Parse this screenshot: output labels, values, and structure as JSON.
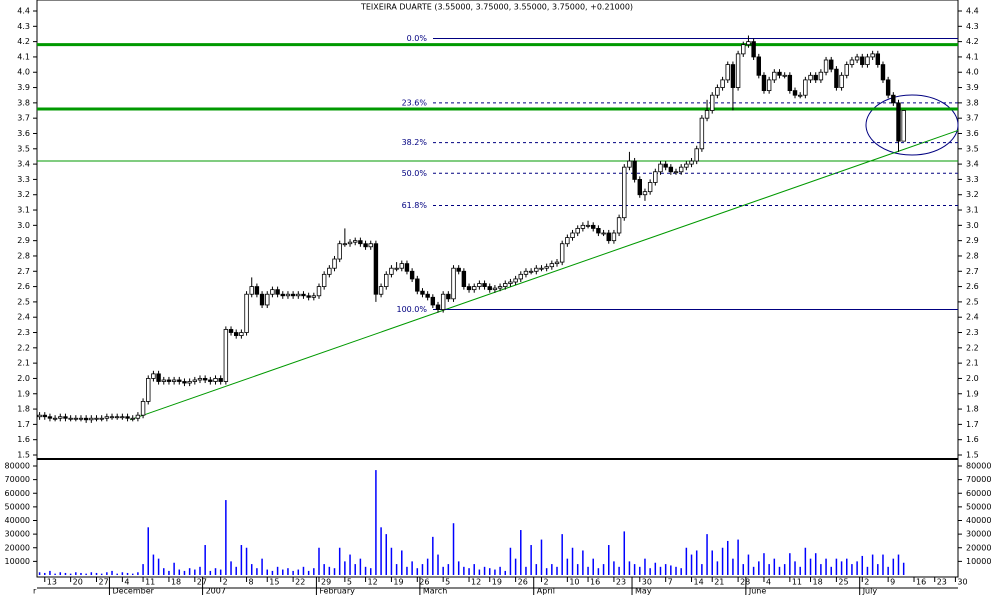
{
  "chart_data": {
    "type": "candlestick",
    "title": "TEIXEIRA DUARTE (3.55000, 3.75000, 3.55000, 3.75000, +0.21000)",
    "categories": [
      null,
      "13",
      null,
      null,
      null,
      null,
      "20",
      null,
      null,
      null,
      null,
      "27",
      null,
      null,
      null,
      null,
      "4",
      null,
      null,
      null,
      "11",
      null,
      null,
      null,
      null,
      "18",
      null,
      null,
      null,
      null,
      "27",
      null,
      null,
      null,
      null,
      "2",
      null,
      null,
      null,
      null,
      "8",
      null,
      null,
      null,
      "15",
      null,
      null,
      null,
      null,
      "22",
      null,
      null,
      null,
      null,
      "29",
      null,
      null,
      null,
      null,
      "5",
      null,
      null,
      null,
      "12",
      null,
      null,
      null,
      null,
      "19",
      null,
      null,
      null,
      null,
      "26",
      null,
      null,
      null,
      null,
      "5",
      null,
      null,
      null,
      null,
      "12",
      null,
      null,
      null,
      "19",
      null,
      null,
      null,
      null,
      "26",
      null,
      null,
      null,
      null,
      "2",
      null,
      null,
      null,
      null,
      "10",
      null,
      null,
      null,
      "16",
      null,
      null,
      null,
      null,
      "23",
      null,
      null,
      null,
      null,
      "30",
      null,
      null,
      null,
      null,
      "7",
      null,
      null,
      null,
      null,
      "14",
      null,
      null,
      null,
      "21",
      null,
      null,
      null,
      null,
      "28",
      null,
      null,
      null,
      null,
      "4",
      null,
      null,
      null,
      null,
      "11",
      null,
      null,
      null,
      "18",
      null,
      null,
      null,
      null,
      "25",
      null,
      null,
      null,
      null,
      "2",
      null,
      null,
      null,
      null,
      "9",
      null,
      null,
      null,
      null,
      "16",
      null,
      null,
      null,
      "23",
      null,
      null,
      null,
      "30"
    ],
    "months": [
      "r",
      null,
      null,
      null,
      null,
      null,
      null,
      null,
      null,
      null,
      null,
      null,
      null,
      null,
      "December",
      null,
      null,
      null,
      null,
      null,
      null,
      null,
      null,
      null,
      null,
      null,
      null,
      null,
      null,
      null,
      null,
      null,
      "2007",
      null,
      null,
      null,
      null,
      null,
      null,
      null,
      null,
      null,
      null,
      null,
      null,
      null,
      null,
      null,
      null,
      null,
      null,
      null,
      null,
      null,
      "February",
      null,
      null,
      null,
      null,
      null,
      null,
      null,
      null,
      null,
      null,
      null,
      null,
      null,
      null,
      null,
      null,
      null,
      null,
      null,
      "March",
      null,
      null,
      null,
      null,
      null,
      null,
      null,
      null,
      null,
      null,
      null,
      null,
      null,
      null,
      null,
      null,
      null,
      null,
      null,
      null,
      null,
      "April",
      null,
      null,
      null,
      null,
      null,
      null,
      null,
      null,
      null,
      null,
      null,
      null,
      null,
      null,
      null,
      null,
      null,
      null,
      "May",
      null,
      null,
      null,
      null,
      null,
      null,
      null,
      null,
      null,
      null,
      null,
      null,
      null,
      null,
      null,
      null,
      null,
      null,
      null,
      null,
      null,
      "June",
      null,
      null,
      null,
      null,
      null,
      null,
      null,
      null,
      null,
      null,
      null,
      null,
      null,
      null,
      null,
      null,
      null,
      null,
      null,
      null,
      null,
      "July",
      null,
      null,
      null,
      null,
      null,
      null,
      null,
      null,
      null,
      null,
      null,
      null,
      null,
      null,
      null,
      null,
      null,
      null
    ],
    "open": [
      1.75,
      1.76,
      1.75,
      1.74,
      1.74,
      1.75,
      1.74,
      1.74,
      1.74,
      1.74,
      1.73,
      1.74,
      1.74,
      1.74,
      1.75,
      1.75,
      1.75,
      1.75,
      1.74,
      1.74,
      1.76,
      1.85,
      2.0,
      2.03,
      1.98,
      1.99,
      1.98,
      1.99,
      1.98,
      1.97,
      1.98,
      1.99,
      2.0,
      1.99,
      1.98,
      2.0,
      1.98,
      2.32,
      2.3,
      2.28,
      2.3,
      2.55,
      2.6,
      2.55,
      2.48,
      2.55,
      2.58,
      2.55,
      2.54,
      2.55,
      2.54,
      2.55,
      2.54,
      2.53,
      2.54,
      2.6,
      2.68,
      2.72,
      2.78,
      2.88,
      2.88,
      2.89,
      2.9,
      2.88,
      2.86,
      2.88,
      2.55,
      2.6,
      2.68,
      2.72,
      2.72,
      2.75,
      2.7,
      2.65,
      2.57,
      2.55,
      2.53,
      2.48,
      2.45,
      2.55,
      2.52,
      2.72,
      2.7,
      2.6,
      2.58,
      2.6,
      2.62,
      2.6,
      2.58,
      2.59,
      2.6,
      2.62,
      2.63,
      2.65,
      2.68,
      2.7,
      2.7,
      2.72,
      2.72,
      2.73,
      2.75,
      2.76,
      2.88,
      2.92,
      2.95,
      2.98,
      3.0,
      3.0,
      2.98,
      2.95,
      2.95,
      2.9,
      2.95,
      3.05,
      3.38,
      3.42,
      3.3,
      3.2,
      3.22,
      3.28,
      3.35,
      3.4,
      3.38,
      3.35,
      3.35,
      3.38,
      3.4,
      3.42,
      3.5,
      3.7,
      3.75,
      3.85,
      3.9,
      3.95,
      4.05,
      3.9,
      4.12,
      4.18,
      4.2,
      4.1,
      3.98,
      3.88,
      3.95,
      4.0,
      3.98,
      3.98,
      3.88,
      3.85,
      3.85,
      3.95,
      3.98,
      3.95,
      4.0,
      4.08,
      4.02,
      3.9,
      3.98,
      4.05,
      4.08,
      4.1,
      4.05,
      4.1,
      4.12,
      4.05,
      3.95,
      3.85,
      3.8,
      3.55,
      null,
      null,
      null,
      null,
      null,
      null,
      null,
      null,
      null,
      null
    ],
    "high": [
      1.78,
      1.78,
      1.77,
      1.76,
      1.77,
      1.77,
      1.76,
      1.76,
      1.76,
      1.76,
      1.76,
      1.76,
      1.76,
      1.77,
      1.77,
      1.77,
      1.77,
      1.77,
      1.76,
      1.78,
      1.87,
      2.02,
      2.05,
      2.05,
      2.01,
      2.01,
      2.01,
      2.01,
      2.0,
      2.0,
      2.01,
      2.02,
      2.02,
      2.01,
      2.02,
      2.02,
      2.34,
      2.34,
      2.32,
      2.32,
      2.57,
      2.66,
      2.62,
      2.57,
      2.57,
      2.6,
      2.6,
      2.57,
      2.57,
      2.57,
      2.57,
      2.57,
      2.56,
      2.56,
      2.62,
      2.7,
      2.74,
      2.8,
      2.9,
      2.98,
      2.91,
      2.92,
      2.92,
      2.9,
      2.9,
      2.9,
      2.62,
      2.7,
      2.74,
      2.76,
      2.77,
      2.77,
      2.72,
      2.67,
      2.59,
      2.57,
      2.55,
      2.5,
      2.57,
      2.57,
      2.74,
      2.74,
      2.72,
      2.62,
      2.62,
      2.64,
      2.64,
      2.62,
      2.61,
      2.62,
      2.64,
      2.65,
      2.67,
      2.7,
      2.72,
      2.72,
      2.74,
      2.74,
      2.75,
      2.77,
      2.78,
      2.9,
      2.94,
      2.97,
      3.0,
      3.02,
      3.03,
      3.02,
      3.0,
      2.97,
      2.97,
      2.97,
      3.07,
      3.4,
      3.48,
      3.44,
      3.32,
      3.24,
      3.3,
      3.37,
      3.42,
      3.42,
      3.4,
      3.37,
      3.4,
      3.42,
      3.44,
      3.52,
      3.72,
      3.82,
      3.87,
      3.92,
      3.97,
      4.07,
      4.07,
      4.14,
      4.2,
      4.24,
      4.22,
      4.12,
      4.0,
      3.97,
      4.02,
      4.02,
      4.0,
      4.0,
      3.9,
      3.87,
      3.97,
      4.0,
      4.0,
      4.02,
      4.1,
      4.1,
      4.04,
      4.0,
      4.07,
      4.1,
      4.12,
      4.12,
      4.12,
      4.14,
      4.14,
      4.07,
      3.97,
      3.87,
      3.82,
      3.75,
      null,
      null,
      null,
      null,
      null,
      null,
      null,
      null,
      null,
      null
    ],
    "low": [
      1.73,
      1.73,
      1.72,
      1.72,
      1.72,
      1.72,
      1.72,
      1.72,
      1.72,
      1.71,
      1.71,
      1.72,
      1.72,
      1.72,
      1.73,
      1.73,
      1.73,
      1.72,
      1.72,
      1.72,
      1.74,
      1.83,
      1.98,
      1.96,
      1.96,
      1.96,
      1.96,
      1.96,
      1.95,
      1.95,
      1.96,
      1.97,
      1.97,
      1.96,
      1.96,
      1.96,
      1.96,
      2.28,
      2.26,
      2.26,
      2.28,
      2.53,
      2.53,
      2.46,
      2.46,
      2.53,
      2.53,
      2.52,
      2.52,
      2.52,
      2.52,
      2.52,
      2.51,
      2.51,
      2.52,
      2.58,
      2.66,
      2.7,
      2.76,
      2.86,
      2.86,
      2.87,
      2.86,
      2.84,
      2.84,
      2.5,
      2.53,
      2.58,
      2.66,
      2.7,
      2.7,
      2.68,
      2.63,
      2.55,
      2.53,
      2.51,
      2.46,
      2.43,
      2.43,
      2.5,
      2.5,
      2.68,
      2.58,
      2.56,
      2.56,
      2.58,
      2.58,
      2.56,
      2.56,
      2.57,
      2.58,
      2.6,
      2.61,
      2.63,
      2.66,
      2.68,
      2.68,
      2.7,
      2.7,
      2.71,
      2.73,
      2.74,
      2.86,
      2.9,
      2.93,
      2.96,
      2.98,
      2.96,
      2.93,
      2.93,
      2.88,
      2.88,
      2.93,
      3.03,
      3.36,
      3.28,
      3.18,
      3.16,
      3.2,
      3.26,
      3.33,
      3.36,
      3.33,
      3.33,
      3.33,
      3.36,
      3.38,
      3.4,
      3.48,
      3.68,
      3.73,
      3.83,
      3.88,
      3.93,
      3.75,
      3.88,
      4.1,
      4.16,
      4.08,
      3.96,
      3.86,
      3.86,
      3.93,
      3.96,
      3.96,
      3.86,
      3.83,
      3.83,
      3.83,
      3.93,
      3.93,
      3.93,
      3.98,
      4.0,
      3.88,
      3.88,
      3.96,
      4.03,
      4.06,
      4.03,
      4.03,
      4.08,
      4.03,
      3.93,
      3.83,
      3.78,
      3.48,
      3.55,
      null,
      null,
      null,
      null,
      null,
      null,
      null,
      null,
      null,
      null
    ],
    "close": [
      1.76,
      1.75,
      1.74,
      1.74,
      1.75,
      1.74,
      1.74,
      1.74,
      1.74,
      1.73,
      1.74,
      1.74,
      1.74,
      1.75,
      1.75,
      1.75,
      1.75,
      1.74,
      1.74,
      1.76,
      1.85,
      2.0,
      2.03,
      1.98,
      1.99,
      1.98,
      1.99,
      1.98,
      1.97,
      1.98,
      1.99,
      2.0,
      1.99,
      1.98,
      2.0,
      1.98,
      2.32,
      2.3,
      2.28,
      2.3,
      2.55,
      2.6,
      2.55,
      2.48,
      2.55,
      2.58,
      2.55,
      2.54,
      2.55,
      2.54,
      2.55,
      2.54,
      2.53,
      2.54,
      2.6,
      2.68,
      2.72,
      2.78,
      2.88,
      2.88,
      2.89,
      2.9,
      2.88,
      2.86,
      2.88,
      2.55,
      2.6,
      2.68,
      2.72,
      2.72,
      2.75,
      2.7,
      2.65,
      2.57,
      2.55,
      2.53,
      2.48,
      2.45,
      2.55,
      2.52,
      2.72,
      2.7,
      2.6,
      2.58,
      2.6,
      2.62,
      2.6,
      2.58,
      2.59,
      2.6,
      2.62,
      2.63,
      2.65,
      2.68,
      2.7,
      2.7,
      2.72,
      2.72,
      2.73,
      2.75,
      2.76,
      2.88,
      2.92,
      2.95,
      2.98,
      3.0,
      3.0,
      2.98,
      2.95,
      2.95,
      2.9,
      2.95,
      3.05,
      3.38,
      3.42,
      3.3,
      3.2,
      3.22,
      3.28,
      3.35,
      3.4,
      3.38,
      3.35,
      3.35,
      3.38,
      3.4,
      3.42,
      3.5,
      3.7,
      3.75,
      3.85,
      3.9,
      3.95,
      4.05,
      3.9,
      4.12,
      4.18,
      4.2,
      4.1,
      3.98,
      3.88,
      3.95,
      4.0,
      3.98,
      3.98,
      3.88,
      3.85,
      3.85,
      3.95,
      3.98,
      3.95,
      4.0,
      4.08,
      4.02,
      3.9,
      3.98,
      4.05,
      4.08,
      4.1,
      4.05,
      4.1,
      4.12,
      4.05,
      3.95,
      3.85,
      3.8,
      3.55,
      3.75,
      null,
      null,
      null,
      null,
      null,
      null,
      null,
      null,
      null,
      null
    ],
    "volume": [
      2000,
      1500,
      3000,
      1000,
      2000,
      1500,
      1000,
      2000,
      1500,
      1000,
      2000,
      1500,
      1000,
      2000,
      3000,
      1000,
      2000,
      1500,
      1000,
      2000,
      8000,
      35000,
      15000,
      12000,
      5000,
      3000,
      9000,
      4000,
      3000,
      5000,
      4000,
      6000,
      22000,
      3000,
      5000,
      4000,
      55000,
      10000,
      6000,
      22000,
      20000,
      8000,
      5000,
      12000,
      4000,
      3000,
      6000,
      4000,
      5000,
      3000,
      4000,
      6000,
      3000,
      5000,
      20000,
      8000,
      6000,
      5000,
      20000,
      10000,
      15000,
      8000,
      12000,
      6000,
      5000,
      77000,
      35000,
      30000,
      20000,
      8000,
      18000,
      6000,
      10000,
      5000,
      8000,
      12000,
      28000,
      15000,
      6000,
      8000,
      38000,
      10000,
      6000,
      5000,
      8000,
      4000,
      6000,
      5000,
      4000,
      6000,
      3000,
      20000,
      12000,
      33000,
      6000,
      22000,
      8000,
      26000,
      5000,
      8000,
      6000,
      30000,
      12000,
      20000,
      8000,
      18000,
      6000,
      12000,
      5000,
      8000,
      22000,
      10000,
      6000,
      32000,
      10000,
      8000,
      6000,
      12000,
      5000,
      9000,
      6000,
      8000,
      7000,
      6000,
      5000,
      20000,
      15000,
      18000,
      8000,
      30000,
      18000,
      10000,
      20000,
      25000,
      12000,
      26000,
      8000,
      15000,
      6000,
      10000,
      16000,
      8000,
      12000,
      6000,
      8000,
      16000,
      10000,
      6000,
      20000,
      12000,
      16000,
      8000,
      12000,
      6000,
      12000,
      10000,
      12000,
      8000,
      10000,
      14000,
      6000,
      15000,
      8000,
      15000,
      6000,
      12000,
      15000,
      9000,
      null,
      null,
      null,
      null,
      null,
      null,
      null,
      null,
      null,
      null
    ],
    "ylim": [
      1.5,
      4.4
    ],
    "yticks": [
      1.5,
      1.6,
      1.7,
      1.8,
      1.9,
      {
        "value": 2,
        "label": "2.0"
      },
      2.1,
      2.2,
      2.3,
      2.4,
      2.5,
      2.6,
      2.7,
      2.8,
      2.9,
      {
        "value": 3,
        "label": "3.0"
      },
      3.1,
      3.2,
      3.3,
      3.4,
      3.5,
      3.6,
      3.7,
      3.8,
      3.9,
      {
        "value": 4,
        "label": "4.0"
      },
      4.1,
      4.2,
      4.3,
      4.4
    ],
    "volume_ylim": [
      0,
      80000
    ],
    "volume_yticks": [
      10000,
      20000,
      30000,
      40000,
      50000,
      60000,
      70000,
      80000
    ],
    "candle_colors": {
      "up": "#ffffff",
      "down": "#000000",
      "outline": "#000000"
    },
    "volume_color": "#0000ff",
    "fib_color": "#000080",
    "fib_levels": [
      {
        "text": "0.0%",
        "price": 4.22
      },
      {
        "text": "23.6%",
        "price": 3.8
      },
      {
        "text": "38.2%",
        "price": 3.54
      },
      {
        "text": "50.0%",
        "price": 3.34
      },
      {
        "text": "61.8%",
        "price": 3.13
      },
      {
        "text": "100.0%",
        "price": 2.45
      }
    ],
    "support_lines": [
      4.18,
      3.76,
      3.42
    ],
    "support_color": "#009900",
    "trendline": [
      1.73,
      3.62
    ]
  }
}
